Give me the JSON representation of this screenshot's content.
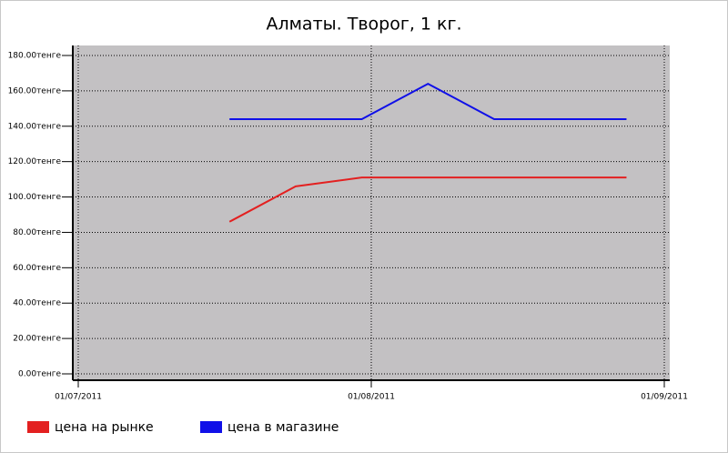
{
  "chart_data": {
    "type": "line",
    "title": "Алматы. Творог, 1 кг.",
    "x": [
      "17/07/2011",
      "24/07/2011",
      "31/07/2011",
      "07/08/2011",
      "14/08/2011",
      "28/08/2011"
    ],
    "series": [
      {
        "name": "цена на рынке",
        "color": "#e32020",
        "values": [
          86,
          106,
          111,
          111,
          111,
          111
        ]
      },
      {
        "name": "цена в магазине",
        "color": "#1010e8",
        "values": [
          144,
          144,
          144,
          164,
          144,
          144
        ]
      }
    ],
    "xlim": [
      "01/07/2011",
      "01/09/2011"
    ],
    "xticks": [
      "01/07/2011",
      "01/08/2011",
      "01/09/2011"
    ],
    "ylim": [
      0,
      180
    ],
    "yticks": [
      {
        "value": 0,
        "label": "0.00тенге"
      },
      {
        "value": 20,
        "label": "20.00тенге"
      },
      {
        "value": 40,
        "label": "40.00тенге"
      },
      {
        "value": 60,
        "label": "60.00тенге"
      },
      {
        "value": 80,
        "label": "80.00тенге"
      },
      {
        "value": 100,
        "label": "100.00тенге"
      },
      {
        "value": 120,
        "label": "120.00тенге"
      },
      {
        "value": 140,
        "label": "140.00тенге"
      },
      {
        "value": 160,
        "label": "160.00тенге"
      },
      {
        "value": 180,
        "label": "180.00тенге"
      }
    ],
    "grid": true,
    "legend": "bottom"
  }
}
